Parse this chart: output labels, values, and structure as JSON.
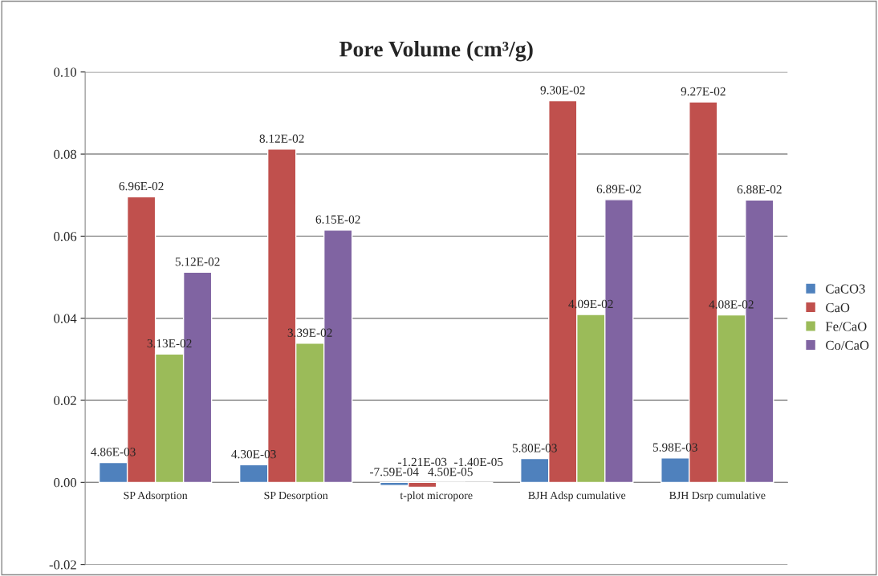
{
  "chart_data": {
    "type": "bar",
    "title": "Pore Volume (cm³/g)",
    "categories": [
      "SP Adsorption",
      "SP Desorption",
      "t-plot micropore",
      "BJH Adsp cumulative",
      "BJH Dsrp cumulative"
    ],
    "series": [
      {
        "name": "CaCO3",
        "color": "#4f81bd",
        "values": [
          0.00486,
          0.0043,
          -0.000759,
          0.0058,
          0.00598
        ],
        "value_labels": [
          "4.86E-03",
          "4.30E-03",
          "-7.59E-04",
          "5.80E-03",
          "5.98E-03"
        ]
      },
      {
        "name": "CaO",
        "color": "#c0504d",
        "values": [
          0.0696,
          0.0812,
          -0.00121,
          0.093,
          0.0927
        ],
        "value_labels": [
          "6.96E-02",
          "8.12E-02",
          "-1.21E-03",
          "9.30E-02",
          "9.27E-02"
        ]
      },
      {
        "name": "Fe/CaO",
        "color": "#9bbb59",
        "values": [
          0.0313,
          0.0339,
          4.5e-05,
          0.0409,
          0.0408
        ],
        "value_labels": [
          "3.13E-02",
          "3.39E-02",
          "4.50E-05",
          "4.09E-02",
          "4.08E-02"
        ]
      },
      {
        "name": "Co/CaO",
        "color": "#8064a2",
        "values": [
          0.0512,
          0.0615,
          -1.4e-05,
          0.0689,
          0.0688
        ],
        "value_labels": [
          "5.12E-02",
          "6.15E-02",
          "-1.40E-05",
          "6.89E-02",
          "6.88E-02"
        ]
      }
    ],
    "ylim": [
      -0.02,
      0.1
    ],
    "yticks": [
      {
        "value": -0.02,
        "label": "-0.02"
      },
      {
        "value": 0,
        "label": "0.00"
      },
      {
        "value": 0.02,
        "label": "0.02"
      },
      {
        "value": 0.04,
        "label": "0.04"
      },
      {
        "value": 0.06,
        "label": "0.06"
      },
      {
        "value": 0.08,
        "label": "0.08"
      },
      {
        "value": 0.1,
        "label": "0.10"
      }
    ],
    "grid": "y",
    "legend": "right"
  }
}
